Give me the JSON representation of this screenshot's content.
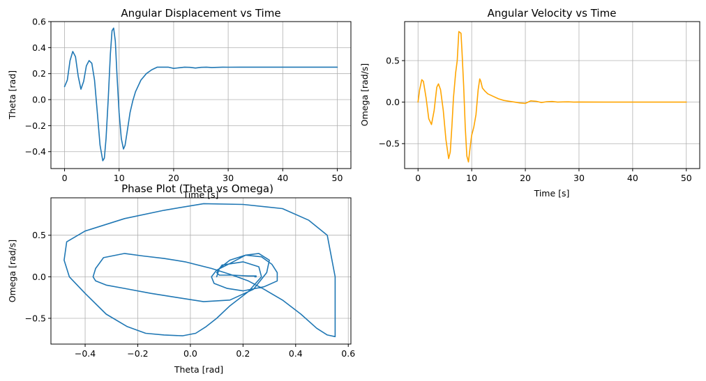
{
  "chart_data": [
    {
      "id": "theta",
      "type": "line",
      "title": "Angular Displacement vs Time",
      "xlabel": "Time [s]",
      "ylabel": "Theta [rad]",
      "xlim": [
        -2.5,
        52.5
      ],
      "ylim": [
        -0.53,
        0.6
      ],
      "xticks": [
        0,
        10,
        20,
        30,
        40,
        50
      ],
      "xtick_labels": [
        "0",
        "10",
        "20",
        "30",
        "40",
        "50"
      ],
      "yticks": [
        -0.4,
        -0.2,
        0.0,
        0.2,
        0.4,
        0.6
      ],
      "ytick_labels": [
        "−0.4",
        "−0.2",
        "0.0",
        "0.2",
        "0.4",
        "0.6"
      ],
      "grid": true,
      "series": [
        {
          "color": "#1f77b4",
          "x": [
            0,
            0.5,
            1.0,
            1.5,
            2.0,
            2.5,
            3.0,
            3.5,
            4.0,
            4.5,
            5.0,
            5.5,
            6.0,
            6.5,
            7.0,
            7.3,
            7.6,
            8.0,
            8.4,
            8.7,
            9.0,
            9.3,
            9.6,
            10.0,
            10.4,
            10.8,
            11.1,
            11.5,
            12.0,
            12.5,
            13.0,
            14.0,
            15.0,
            16.0,
            17.0,
            18.0,
            19.0,
            20.0,
            21.0,
            22.0,
            23.0,
            24.0,
            25.0,
            26.0,
            27.0,
            28.0,
            29.0,
            30.0,
            32.0,
            35.0,
            40.0,
            45.0,
            50.0
          ],
          "y": [
            0.1,
            0.15,
            0.3,
            0.37,
            0.33,
            0.18,
            0.08,
            0.14,
            0.26,
            0.3,
            0.28,
            0.15,
            -0.1,
            -0.35,
            -0.47,
            -0.45,
            -0.3,
            0.0,
            0.35,
            0.53,
            0.55,
            0.45,
            0.2,
            -0.1,
            -0.3,
            -0.38,
            -0.35,
            -0.24,
            -0.1,
            -0.01,
            0.06,
            0.15,
            0.2,
            0.23,
            0.25,
            0.25,
            0.25,
            0.24,
            0.245,
            0.25,
            0.248,
            0.243,
            0.248,
            0.25,
            0.247,
            0.248,
            0.25,
            0.249,
            0.25,
            0.25,
            0.25,
            0.25,
            0.25
          ]
        }
      ]
    },
    {
      "id": "omega",
      "type": "line",
      "title": "Angular Velocity vs Time",
      "xlabel": "Time [s]",
      "ylabel": "Omega [rad/s]",
      "xlim": [
        -2.5,
        52.5
      ],
      "ylim": [
        -0.8,
        0.97
      ],
      "xticks": [
        0,
        10,
        20,
        30,
        40,
        50
      ],
      "xtick_labels": [
        "0",
        "10",
        "20",
        "30",
        "40",
        "50"
      ],
      "yticks": [
        -0.5,
        0.0,
        0.5
      ],
      "ytick_labels": [
        "−0.5",
        "0.0",
        "0.5"
      ],
      "grid": true,
      "series": [
        {
          "color": "#ffa500",
          "x": [
            0,
            0.3,
            0.7,
            1.0,
            1.5,
            2.0,
            2.5,
            3.0,
            3.5,
            3.8,
            4.2,
            4.7,
            5.2,
            5.7,
            6.0,
            6.3,
            6.6,
            7.0,
            7.3,
            7.6,
            8.0,
            8.2,
            8.5,
            8.8,
            9.1,
            9.4,
            9.7,
            10.0,
            10.4,
            10.8,
            11.2,
            11.5,
            11.7,
            12.0,
            12.5,
            13.0,
            14.0,
            15.0,
            16.0,
            17.0,
            18.0,
            19.0,
            20.0,
            20.5,
            21.0,
            22.0,
            23.0,
            24.0,
            25.0,
            26.0,
            27.0,
            28.0,
            29.0,
            30.0,
            35.0,
            40.0,
            45.0,
            50.0
          ],
          "y": [
            0.0,
            0.15,
            0.27,
            0.25,
            0.05,
            -0.2,
            -0.27,
            -0.1,
            0.18,
            0.22,
            0.15,
            -0.1,
            -0.45,
            -0.68,
            -0.6,
            -0.3,
            0.05,
            0.35,
            0.5,
            0.85,
            0.83,
            0.6,
            0.2,
            -0.3,
            -0.65,
            -0.72,
            -0.55,
            -0.4,
            -0.3,
            -0.15,
            0.15,
            0.28,
            0.25,
            0.17,
            0.13,
            0.1,
            0.07,
            0.04,
            0.02,
            0.01,
            0.0,
            -0.01,
            -0.015,
            0.0,
            0.015,
            0.01,
            -0.005,
            0.005,
            0.008,
            0.0,
            0.003,
            0.004,
            0.0,
            0.002,
            0.0,
            0.0,
            0.0,
            0.0
          ]
        }
      ]
    },
    {
      "id": "phase",
      "type": "line",
      "title": "Phase Plot (Theta vs Omega)",
      "xlabel": "Theta [rad]",
      "ylabel": "Omega [rad/s]",
      "xlim": [
        -0.53,
        0.61
      ],
      "ylim": [
        -0.81,
        0.95
      ],
      "xticks": [
        -0.4,
        -0.2,
        0.0,
        0.2,
        0.4,
        0.6
      ],
      "xtick_labels": [
        "−0.4",
        "−0.2",
        "0.0",
        "0.2",
        "0.4",
        "0.6"
      ],
      "yticks": [
        -0.5,
        0.0,
        0.5
      ],
      "ytick_labels": [
        "−0.5",
        "0.0",
        "0.5"
      ],
      "grid": true,
      "series": [
        {
          "color": "#1f77b4",
          "x": [
            0.1,
            0.11,
            0.15,
            0.21,
            0.27,
            0.31,
            0.33,
            0.33,
            0.28,
            0.2,
            0.14,
            0.09,
            0.08,
            0.1,
            0.15,
            0.21,
            0.26,
            0.3,
            0.29,
            0.24,
            0.15,
            0.05,
            -0.05,
            -0.15,
            -0.25,
            -0.32,
            -0.36,
            -0.37,
            -0.36,
            -0.33,
            -0.25,
            -0.18,
            -0.1,
            -0.02,
            0.08,
            0.15,
            0.22,
            0.28,
            0.35,
            0.42,
            0.48,
            0.52,
            0.55,
            0.55,
            0.52,
            0.45,
            0.35,
            0.2,
            0.05,
            -0.1,
            -0.25,
            -0.4,
            -0.47,
            -0.48,
            -0.46,
            -0.4,
            -0.32,
            -0.24,
            -0.17,
            -0.1,
            -0.03,
            0.02,
            0.06,
            0.1,
            0.15,
            0.22,
            0.27,
            0.26,
            0.2,
            0.12,
            0.1,
            0.11,
            0.16,
            0.22,
            0.25,
            0.245,
            0.25
          ],
          "y": [
            0.0,
            0.1,
            0.2,
            0.26,
            0.24,
            0.15,
            0.05,
            -0.05,
            -0.12,
            -0.17,
            -0.14,
            -0.08,
            0.0,
            0.08,
            0.16,
            0.26,
            0.28,
            0.2,
            0.05,
            -0.15,
            -0.28,
            -0.3,
            -0.25,
            -0.2,
            -0.14,
            -0.1,
            -0.05,
            0.0,
            0.1,
            0.23,
            0.28,
            0.25,
            0.22,
            0.18,
            0.1,
            0.03,
            -0.05,
            -0.15,
            -0.28,
            -0.45,
            -0.62,
            -0.7,
            -0.72,
            0.0,
            0.5,
            0.68,
            0.82,
            0.87,
            0.88,
            0.8,
            0.7,
            0.55,
            0.42,
            0.2,
            0.0,
            -0.2,
            -0.45,
            -0.6,
            -0.68,
            -0.7,
            -0.71,
            -0.68,
            -0.6,
            -0.5,
            -0.35,
            -0.18,
            0.0,
            0.12,
            0.18,
            0.14,
            0.05,
            0.02,
            0.02,
            0.01,
            0.01,
            0.0,
            0.0
          ]
        }
      ]
    }
  ]
}
